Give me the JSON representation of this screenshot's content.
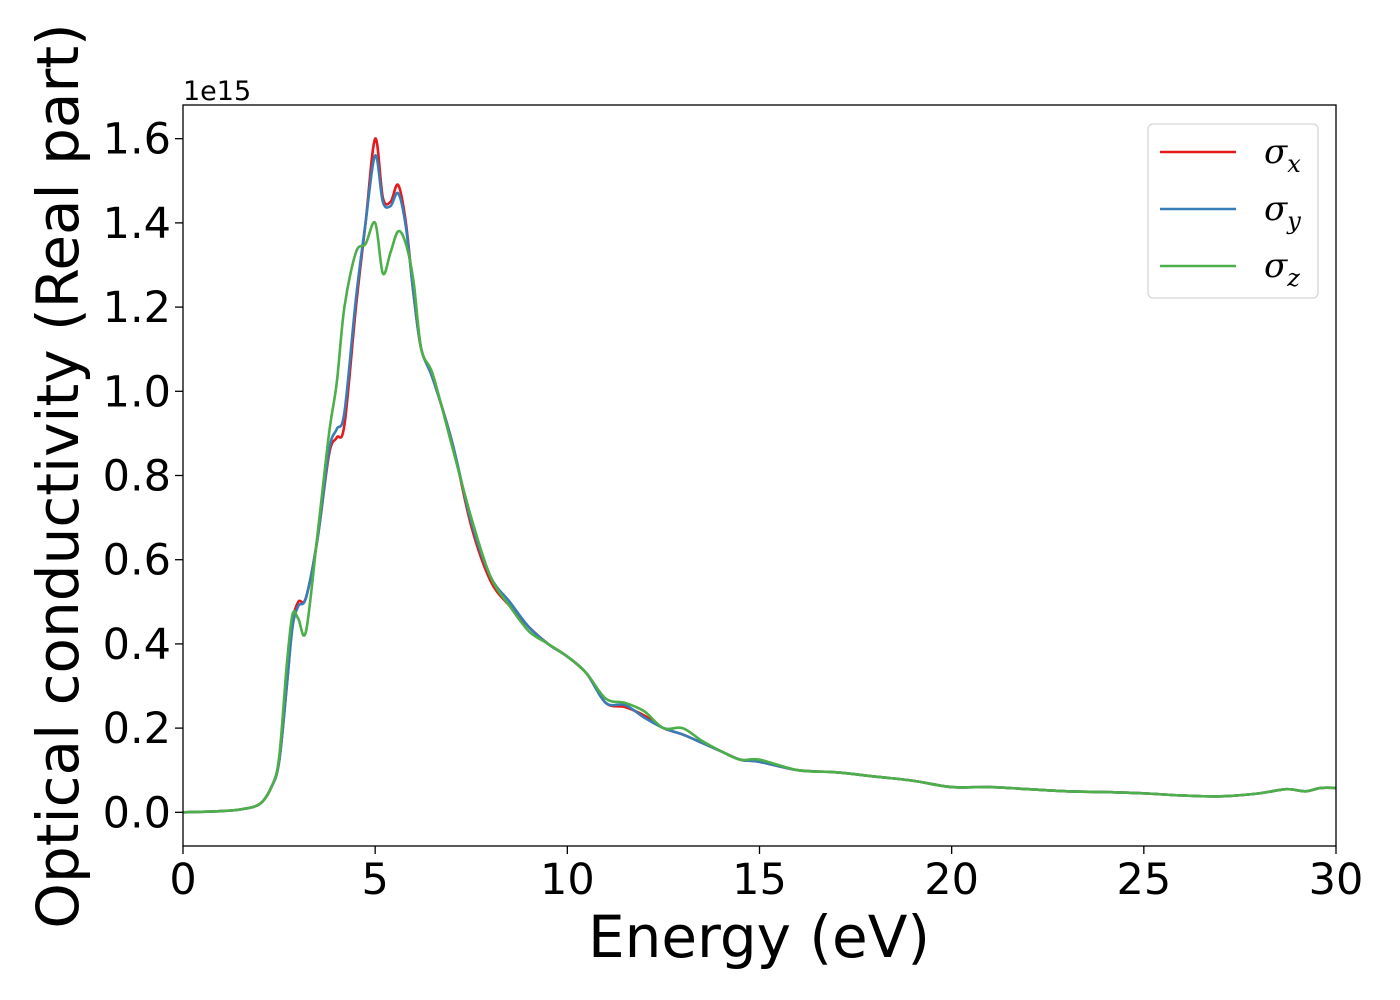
{
  "chart_data": {
    "type": "line",
    "xlabel": "Energy (eV)",
    "ylabel": "Optical conductivity (Real part)",
    "y_offset_text": "1e15",
    "xlim": [
      0,
      30
    ],
    "ylim": [
      -0.08,
      1.68
    ],
    "x_ticks": [
      0,
      5,
      10,
      15,
      20,
      25,
      30
    ],
    "y_ticks": [
      0.0,
      0.2,
      0.4,
      0.6,
      0.8,
      1.0,
      1.2,
      1.4,
      1.6
    ],
    "x_tick_labels": [
      "0",
      "5",
      "10",
      "15",
      "20",
      "25",
      "30"
    ],
    "y_tick_labels": [
      "0.0",
      "0.2",
      "0.4",
      "0.6",
      "0.8",
      "1.0",
      "1.2",
      "1.4",
      "1.6"
    ],
    "grid": false,
    "legend_position": "upper right",
    "series": [
      {
        "name": "σx",
        "sub": "x",
        "color": "#e41a1c",
        "x": [
          0,
          1,
          1.5,
          2,
          2.3,
          2.5,
          2.7,
          2.85,
          3.0,
          3.2,
          3.5,
          3.8,
          4.0,
          4.2,
          4.5,
          4.75,
          5.0,
          5.2,
          5.4,
          5.6,
          5.8,
          6.0,
          6.2,
          6.5,
          7.0,
          7.5,
          8.0,
          8.5,
          9.0,
          9.5,
          10.0,
          10.5,
          11.0,
          11.5,
          12.0,
          12.5,
          13.0,
          13.5,
          14.0,
          14.5,
          15.0,
          16.0,
          17.0,
          18.0,
          19.0,
          20.0,
          21.0,
          22.0,
          23.0,
          24.0,
          25.0,
          26.0,
          27.0,
          28.0,
          28.7,
          29.2,
          29.6,
          30.0
        ],
        "y": [
          0.0,
          0.003,
          0.007,
          0.02,
          0.06,
          0.12,
          0.3,
          0.45,
          0.5,
          0.51,
          0.65,
          0.85,
          0.89,
          0.92,
          1.2,
          1.4,
          1.6,
          1.46,
          1.45,
          1.49,
          1.4,
          1.23,
          1.1,
          1.03,
          0.88,
          0.68,
          0.55,
          0.49,
          0.44,
          0.4,
          0.37,
          0.33,
          0.26,
          0.25,
          0.23,
          0.2,
          0.185,
          0.165,
          0.145,
          0.125,
          0.12,
          0.1,
          0.095,
          0.085,
          0.075,
          0.06,
          0.06,
          0.055,
          0.05,
          0.048,
          0.045,
          0.04,
          0.038,
          0.045,
          0.055,
          0.05,
          0.058,
          0.058
        ]
      },
      {
        "name": "σy",
        "sub": "y",
        "color": "#377eb8",
        "x": [
          0,
          1,
          1.5,
          2,
          2.3,
          2.5,
          2.7,
          2.85,
          3.0,
          3.2,
          3.5,
          3.8,
          4.0,
          4.2,
          4.5,
          4.75,
          5.0,
          5.2,
          5.4,
          5.6,
          5.8,
          6.0,
          6.2,
          6.5,
          7.0,
          7.5,
          8.0,
          8.5,
          9.0,
          9.5,
          10.0,
          10.5,
          11.0,
          11.5,
          12.0,
          12.5,
          13.0,
          13.5,
          14.0,
          14.5,
          15.0,
          16.0,
          17.0,
          18.0,
          19.0,
          20.0,
          21.0,
          22.0,
          23.0,
          24.0,
          25.0,
          26.0,
          27.0,
          28.0,
          28.7,
          29.2,
          29.6,
          30.0
        ],
        "y": [
          0.0,
          0.003,
          0.007,
          0.02,
          0.06,
          0.12,
          0.3,
          0.44,
          0.49,
          0.51,
          0.65,
          0.86,
          0.91,
          0.95,
          1.22,
          1.4,
          1.56,
          1.45,
          1.44,
          1.47,
          1.39,
          1.23,
          1.1,
          1.03,
          0.88,
          0.69,
          0.56,
          0.5,
          0.44,
          0.4,
          0.37,
          0.33,
          0.26,
          0.255,
          0.225,
          0.2,
          0.185,
          0.165,
          0.145,
          0.125,
          0.12,
          0.1,
          0.095,
          0.085,
          0.075,
          0.06,
          0.06,
          0.055,
          0.05,
          0.048,
          0.045,
          0.04,
          0.038,
          0.045,
          0.055,
          0.05,
          0.058,
          0.058
        ]
      },
      {
        "name": "σz",
        "sub": "z",
        "color": "#4daf4a",
        "x": [
          0,
          1,
          1.5,
          2,
          2.3,
          2.5,
          2.7,
          2.85,
          3.0,
          3.2,
          3.5,
          3.8,
          4.0,
          4.2,
          4.5,
          4.75,
          5.0,
          5.2,
          5.4,
          5.6,
          5.8,
          6.0,
          6.2,
          6.5,
          7.0,
          7.5,
          8.0,
          8.5,
          9.0,
          9.5,
          10.0,
          10.5,
          11.0,
          11.5,
          12.0,
          12.5,
          13.0,
          13.5,
          14.0,
          14.5,
          15.0,
          16.0,
          17.0,
          18.0,
          19.0,
          20.0,
          21.0,
          22.0,
          23.0,
          24.0,
          25.0,
          26.0,
          27.0,
          28.0,
          28.7,
          29.2,
          29.6,
          30.0
        ],
        "y": [
          0.0,
          0.003,
          0.007,
          0.02,
          0.06,
          0.13,
          0.35,
          0.47,
          0.46,
          0.43,
          0.66,
          0.9,
          1.02,
          1.2,
          1.33,
          1.35,
          1.4,
          1.28,
          1.33,
          1.38,
          1.35,
          1.26,
          1.1,
          1.04,
          0.87,
          0.7,
          0.56,
          0.49,
          0.43,
          0.4,
          0.37,
          0.33,
          0.27,
          0.26,
          0.24,
          0.2,
          0.2,
          0.17,
          0.145,
          0.125,
          0.125,
          0.1,
          0.095,
          0.085,
          0.075,
          0.06,
          0.06,
          0.055,
          0.05,
          0.048,
          0.045,
          0.04,
          0.038,
          0.045,
          0.055,
          0.05,
          0.058,
          0.058
        ]
      }
    ]
  }
}
